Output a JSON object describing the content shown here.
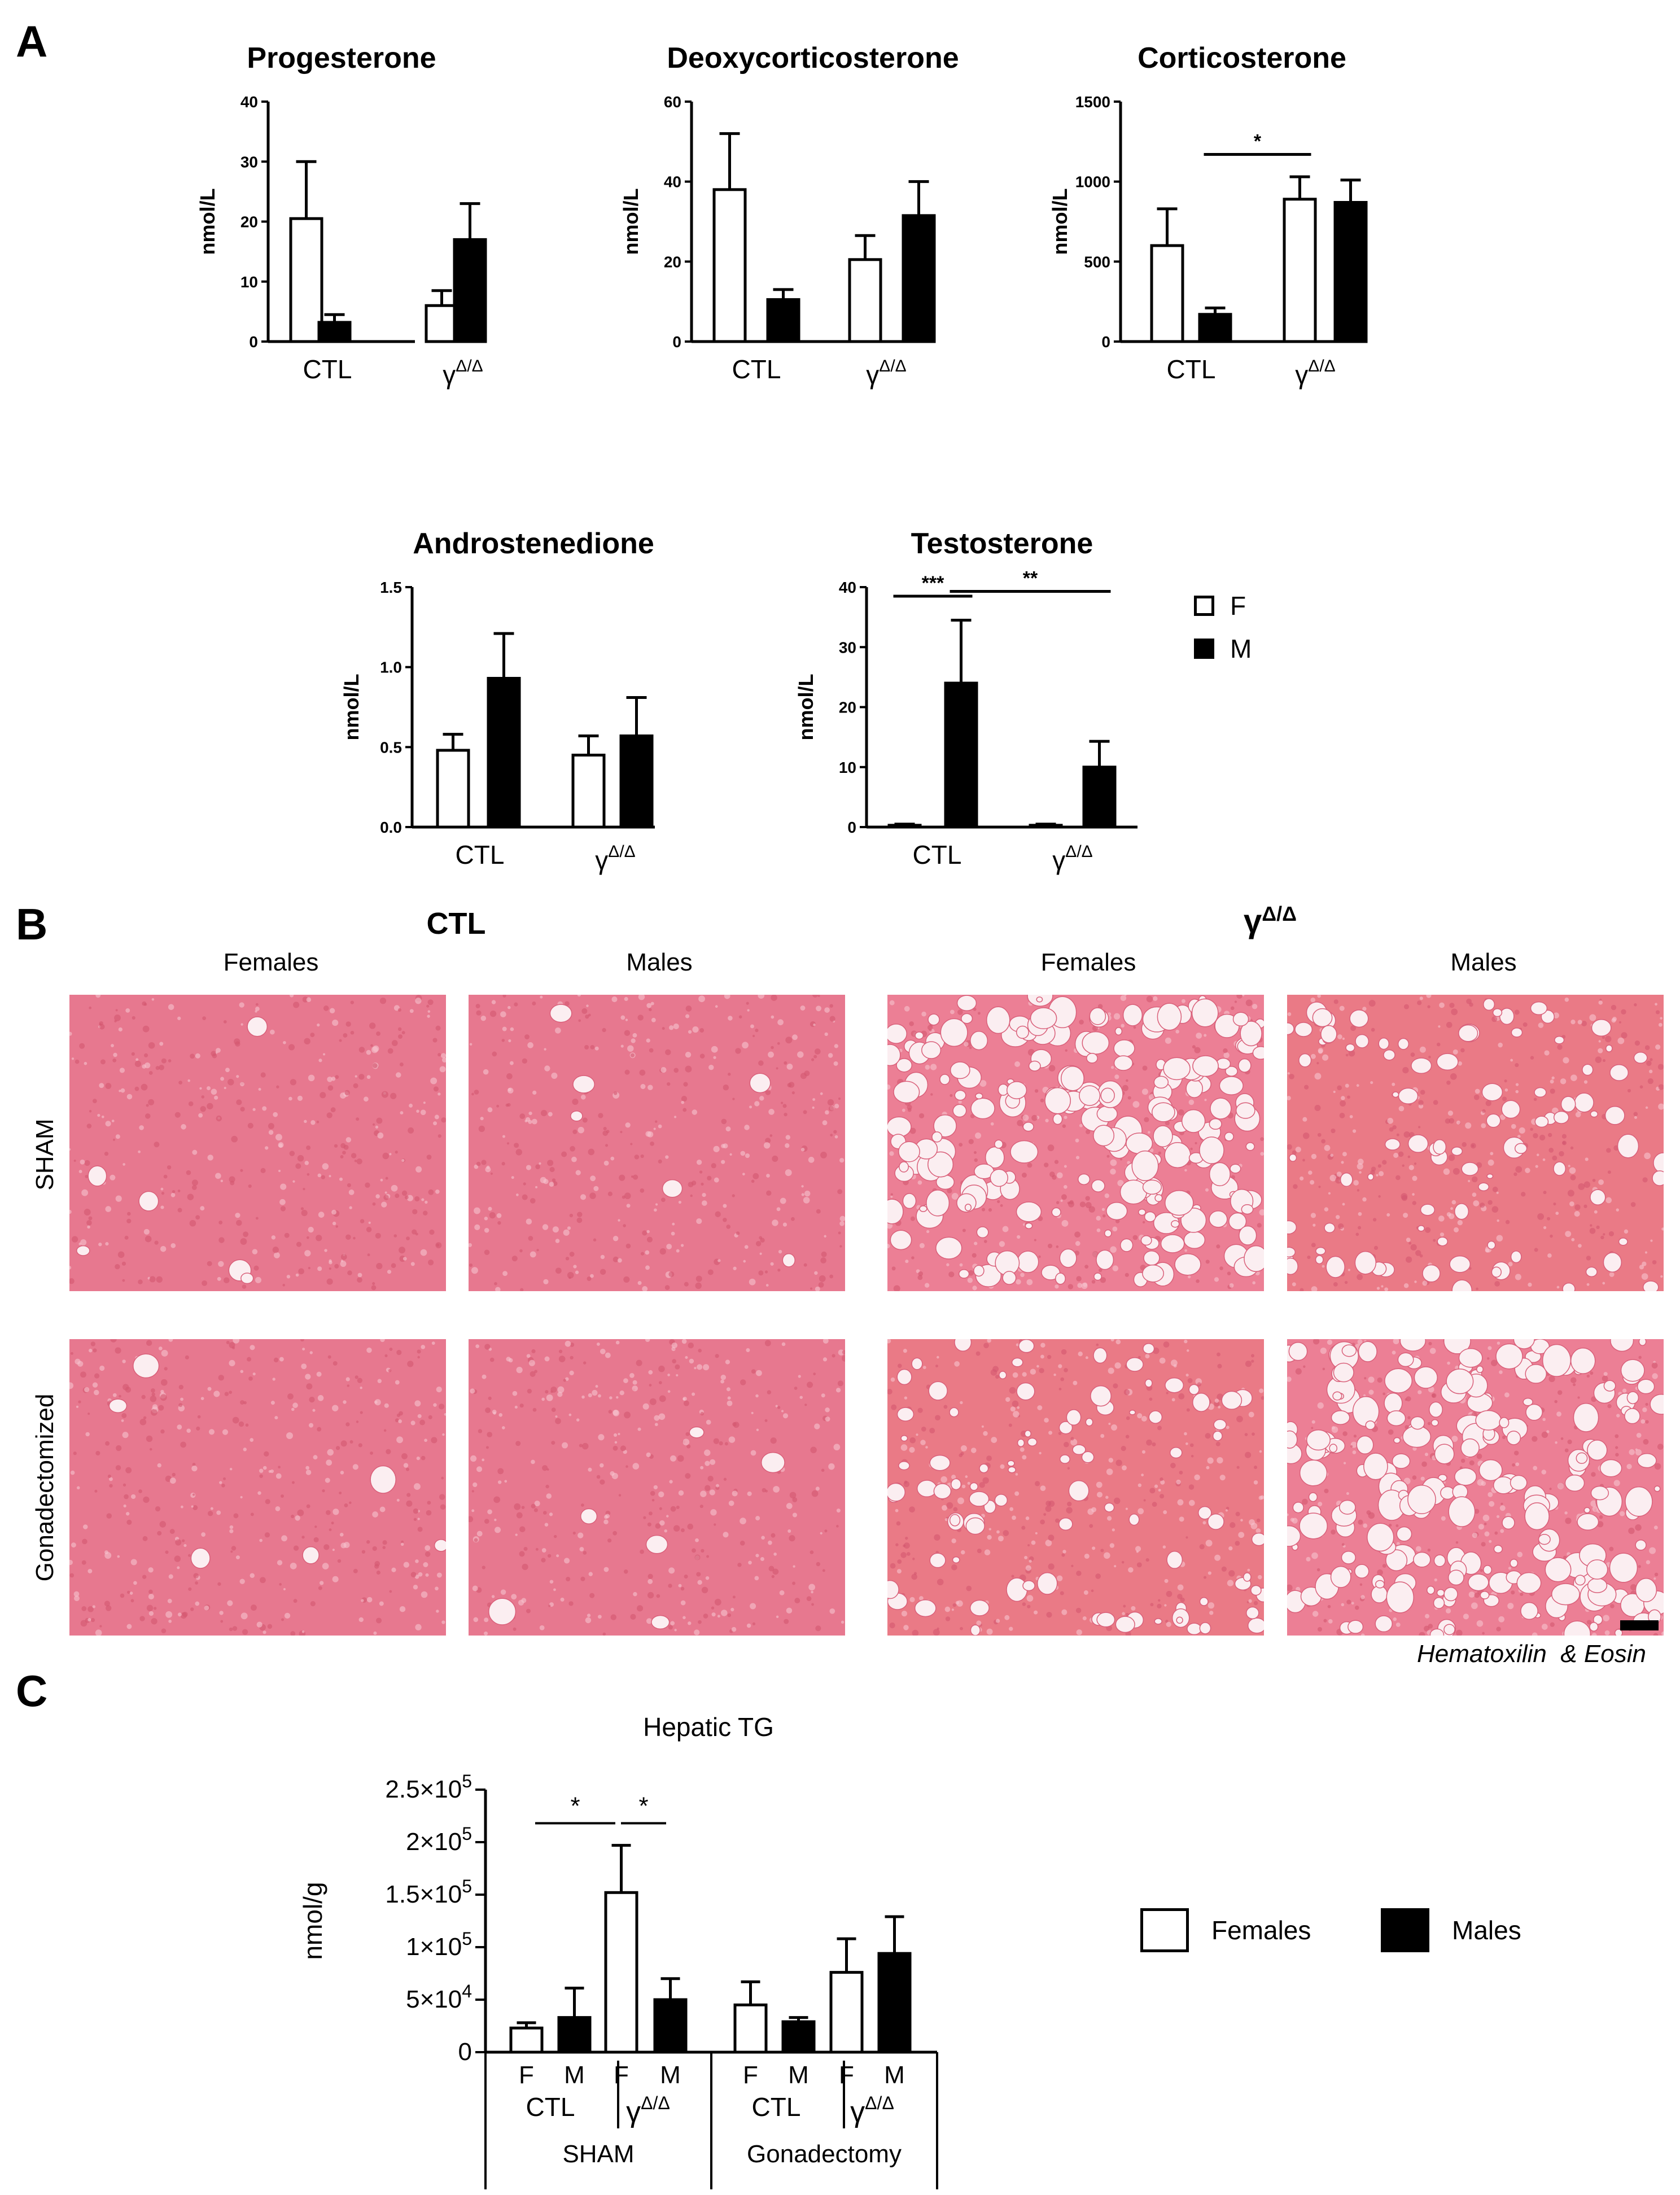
{
  "panels": {
    "a": "A",
    "b": "B",
    "c": "C"
  },
  "group_labels": {
    "ctl": "CTL",
    "ko_base": "γ",
    "ko_sup": "Δ/Δ",
    "ko_base_upper": "γ"
  },
  "legend_a": {
    "f": "F",
    "m": "M"
  },
  "legend_c": {
    "females": "Females",
    "males": "Males"
  },
  "colors": {
    "female_fill": "#ffffff",
    "male_fill": "#000000",
    "outline": "#000000"
  },
  "chart_data": [
    {
      "type": "bar",
      "title": "Progesterone",
      "ylabel": "nmol/L",
      "ylim": [
        0,
        40
      ],
      "yticks": [
        "0",
        "10",
        "20",
        "30",
        "40"
      ],
      "categories": [
        "CTL",
        "γΔ/Δ"
      ],
      "series": [
        {
          "name": "F",
          "values": [
            20.5,
            6.0
          ],
          "errors": [
            9.5,
            2.5
          ]
        },
        {
          "name": "M",
          "values": [
            3.2,
            17.0
          ],
          "errors": [
            1.3,
            6.0
          ]
        }
      ],
      "significance": []
    },
    {
      "type": "bar",
      "title": "Deoxycorticosterone",
      "ylabel": "nmol/L",
      "ylim": [
        0,
        60
      ],
      "yticks": [
        "0",
        "20",
        "40",
        "60"
      ],
      "categories": [
        "CTL",
        "γΔ/Δ"
      ],
      "series": [
        {
          "name": "F",
          "values": [
            38.0,
            20.5
          ],
          "errors": [
            14.0,
            6.0
          ]
        },
        {
          "name": "M",
          "values": [
            10.5,
            31.5
          ],
          "errors": [
            2.5,
            8.5
          ]
        }
      ],
      "significance": []
    },
    {
      "type": "bar",
      "title": "Corticosterone",
      "ylabel": "nmol/L",
      "ylim": [
        0,
        1500
      ],
      "yticks": [
        "0",
        "500",
        "1000",
        "1500"
      ],
      "categories": [
        "CTL",
        "γΔ/Δ"
      ],
      "series": [
        {
          "name": "F",
          "values": [
            600,
            890
          ],
          "errors": [
            230,
            140
          ]
        },
        {
          "name": "M",
          "values": [
            170,
            870
          ],
          "errors": [
            40,
            140
          ]
        }
      ],
      "significance": [
        {
          "label": "*",
          "from": [
            0,
            1
          ],
          "to": [
            1,
            0
          ],
          "at": 1170
        }
      ]
    },
    {
      "type": "bar",
      "title": "Androstenedione",
      "ylabel": "nmol/L",
      "ylim": [
        0,
        1.5
      ],
      "yticks": [
        "0.0",
        "0.5",
        "1.0",
        "1.5"
      ],
      "categories": [
        "CTL",
        "γΔ/Δ"
      ],
      "series": [
        {
          "name": "F",
          "values": [
            0.48,
            0.45
          ],
          "errors": [
            0.1,
            0.12
          ]
        },
        {
          "name": "M",
          "values": [
            0.93,
            0.57
          ],
          "errors": [
            0.28,
            0.24
          ]
        }
      ],
      "significance": []
    },
    {
      "type": "bar",
      "title": "Testosterone",
      "ylabel": "nmol/L",
      "ylim": [
        0,
        40
      ],
      "yticks": [
        "0",
        "10",
        "20",
        "30",
        "40"
      ],
      "categories": [
        "CTL",
        "γΔ/Δ"
      ],
      "series": [
        {
          "name": "F",
          "values": [
            0.3,
            0.3
          ],
          "errors": [
            0.2,
            0.2
          ]
        },
        {
          "name": "M",
          "values": [
            24.0,
            10.0
          ],
          "errors": [
            10.5,
            4.3
          ]
        }
      ],
      "significance": [
        {
          "label": "***",
          "from": [
            0,
            0
          ],
          "to": [
            0,
            1
          ],
          "at": 38.5
        },
        {
          "label": "**",
          "from": [
            0,
            1
          ],
          "to": [
            1,
            1
          ],
          "at": 39.3
        }
      ]
    },
    {
      "type": "bar",
      "title": "Hepatic TG",
      "ylabel": "nmol/g",
      "ylim": [
        0,
        250000
      ],
      "yticks": [
        {
          "base": "2.5×10",
          "exp": "5"
        },
        {
          "base": "2×10",
          "exp": "5"
        },
        {
          "base": "1.5×10",
          "exp": "5"
        },
        {
          "base": "1×10",
          "exp": "5"
        },
        {
          "base": "5×10",
          "exp": "4"
        },
        {
          "base": "0",
          "exp": ""
        }
      ],
      "ytick_values": [
        250000,
        200000,
        150000,
        100000,
        50000,
        0
      ],
      "bars": [
        {
          "sex": "F",
          "value": 23000,
          "error": 5000
        },
        {
          "sex": "M",
          "value": 33000,
          "error": 28000
        },
        {
          "sex": "F",
          "value": 152000,
          "error": 45000
        },
        {
          "sex": "M",
          "value": 50000,
          "error": 20000
        },
        {
          "sex": "F",
          "value": 45000,
          "error": 22000
        },
        {
          "sex": "M",
          "value": 29000,
          "error": 4000
        },
        {
          "sex": "F",
          "value": 76000,
          "error": 32000
        },
        {
          "sex": "M",
          "value": 94000,
          "error": 35000
        }
      ],
      "sex_labels": [
        "F",
        "M",
        "F",
        "M",
        "F",
        "M",
        "F",
        "M"
      ],
      "subgroups": [
        "CTL",
        "γΔ/Δ",
        "CTL",
        "γΔ/Δ"
      ],
      "groups": [
        "SHAM",
        "Gonadectomy"
      ],
      "significance": [
        {
          "label": "*",
          "from": 0,
          "to": 2,
          "at": 218000
        },
        {
          "label": "*",
          "from": 2,
          "to": 3,
          "at": 218000
        }
      ]
    }
  ],
  "histology": {
    "group_ctl": "CTL",
    "group_ko": "γ",
    "group_ko_sup": "Δ/Δ",
    "columns": [
      "Females",
      "Males",
      "Females",
      "Males"
    ],
    "rows": [
      "SHAM",
      "Gonadectomized"
    ],
    "stain": "Hematoxilin  & Eosin"
  }
}
